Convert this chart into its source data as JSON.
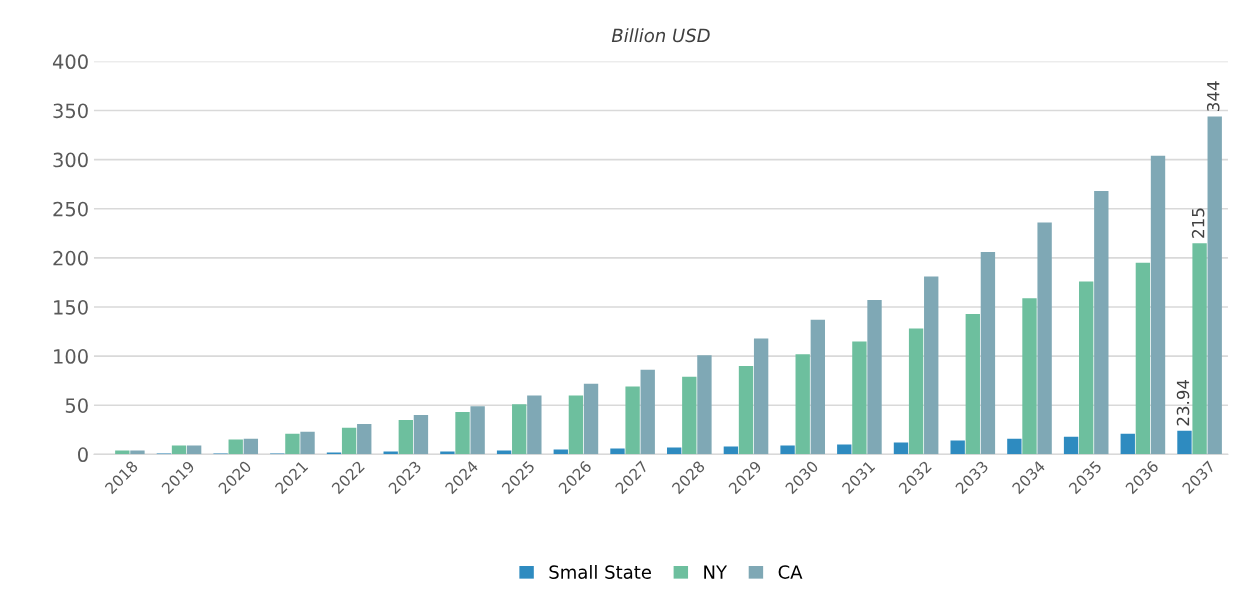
{
  "chart_data": {
    "type": "bar",
    "title": "Billion USD",
    "categories": [
      "2018",
      "2019",
      "2020",
      "2021",
      "2022",
      "2023",
      "2024",
      "2025",
      "2026",
      "2027",
      "2028",
      "2029",
      "2030",
      "2031",
      "2032",
      "2033",
      "2034",
      "2035",
      "2036",
      "2037"
    ],
    "series": [
      {
        "name": "Small State",
        "color": "#2e8bc0",
        "values": [
          0,
          1,
          1,
          1,
          2,
          3,
          3,
          4,
          5,
          6,
          7,
          8,
          9,
          10,
          12,
          14,
          16,
          18,
          21,
          23.94
        ],
        "value_labels": [
          null,
          null,
          null,
          null,
          null,
          null,
          null,
          null,
          null,
          null,
          null,
          null,
          null,
          null,
          null,
          null,
          null,
          null,
          null,
          "23.94"
        ]
      },
      {
        "name": "NY",
        "color": "#6dbf9e",
        "values": [
          4,
          9,
          15,
          21,
          27,
          35,
          43,
          51,
          60,
          69,
          79,
          90,
          102,
          115,
          128,
          143,
          159,
          176,
          195,
          215
        ],
        "value_labels": [
          null,
          null,
          null,
          null,
          null,
          null,
          null,
          null,
          null,
          null,
          null,
          null,
          null,
          null,
          null,
          null,
          null,
          null,
          null,
          "215"
        ]
      },
      {
        "name": "CA",
        "color": "#7fa8b5",
        "values": [
          4,
          9,
          16,
          23,
          31,
          40,
          49,
          60,
          72,
          86,
          101,
          118,
          137,
          157,
          181,
          206,
          236,
          268,
          304,
          344
        ],
        "value_labels": [
          null,
          null,
          null,
          null,
          null,
          null,
          null,
          null,
          null,
          null,
          null,
          null,
          null,
          null,
          null,
          null,
          null,
          null,
          null,
          "344"
        ]
      }
    ],
    "ylim": [
      0,
      400
    ],
    "yticks": [
      0,
      50,
      100,
      150,
      200,
      250,
      300,
      350,
      400
    ],
    "grid": "y",
    "legend": "bottom"
  }
}
